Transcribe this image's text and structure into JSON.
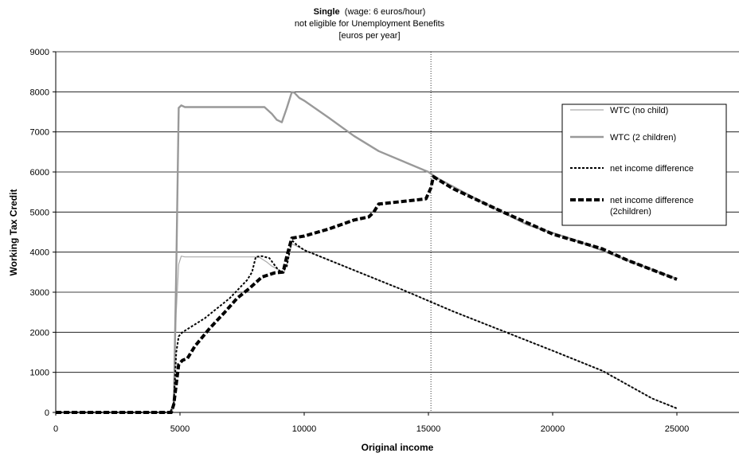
{
  "chart_data": {
    "type": "line",
    "title_bold": "Single",
    "title_rest": "  (wage: 6 euros/hour)",
    "subtitle_1": "not eligible for Unemployment Benefits",
    "subtitle_2": "[euros per year]",
    "xlabel": "Original income",
    "ylabel": "Working Tax Credit",
    "xlim": [
      0,
      27500
    ],
    "ylim": [
      0,
      9000
    ],
    "x_ticks": [
      0,
      5000,
      10000,
      15000,
      20000,
      25000
    ],
    "x_tick_labels": [
      "0",
      "5000",
      "10000",
      "15000",
      "20000",
      "25000"
    ],
    "y_ticks": [
      0,
      1000,
      2000,
      3000,
      4000,
      5000,
      6000,
      7000,
      8000,
      9000
    ],
    "y_tick_labels": [
      "0",
      "1000",
      "2000",
      "3000",
      "4000",
      "5000",
      "6000",
      "7000",
      "8000",
      "9000"
    ],
    "grid": "horizontal",
    "legend_position": "right",
    "reference_line_x": 15100,
    "series": [
      {
        "name": "WTC (no child)",
        "color": "#aaaaaa",
        "style": "solid-thin",
        "points": [
          [
            0,
            0
          ],
          [
            4600,
            0
          ],
          [
            4750,
            200
          ],
          [
            4850,
            2500
          ],
          [
            4950,
            3700
          ],
          [
            5050,
            3900
          ],
          [
            5200,
            3880
          ],
          [
            8000,
            3880
          ],
          [
            8200,
            3870
          ],
          [
            8500,
            3750
          ],
          [
            8700,
            3650
          ],
          [
            9000,
            3550
          ],
          [
            9200,
            3500
          ],
          [
            9350,
            3800
          ],
          [
            9500,
            4200
          ],
          [
            9700,
            4150
          ],
          [
            10000,
            4050
          ],
          [
            12000,
            3550
          ],
          [
            14000,
            3050
          ],
          [
            16000,
            2520
          ],
          [
            18000,
            2030
          ],
          [
            20000,
            1540
          ],
          [
            22000,
            1040
          ],
          [
            24000,
            350
          ],
          [
            25000,
            100
          ]
        ]
      },
      {
        "name": "WTC (2 children)",
        "color": "#999999",
        "style": "solid-thick",
        "points": [
          [
            0,
            0
          ],
          [
            4650,
            0
          ],
          [
            4750,
            200
          ],
          [
            4850,
            3500
          ],
          [
            4950,
            7600
          ],
          [
            5050,
            7660
          ],
          [
            5200,
            7620
          ],
          [
            8400,
            7620
          ],
          [
            8700,
            7450
          ],
          [
            8900,
            7300
          ],
          [
            9100,
            7240
          ],
          [
            9300,
            7600
          ],
          [
            9500,
            7990
          ],
          [
            9600,
            7980
          ],
          [
            9800,
            7850
          ],
          [
            10000,
            7780
          ],
          [
            11000,
            7350
          ],
          [
            12000,
            6900
          ],
          [
            13000,
            6520
          ],
          [
            15000,
            6000
          ],
          [
            15400,
            5830
          ],
          [
            17000,
            5300
          ],
          [
            19000,
            4680
          ],
          [
            21000,
            4280
          ],
          [
            23000,
            3800
          ],
          [
            25000,
            3330
          ]
        ]
      },
      {
        "name": "net income difference",
        "color": "#000000",
        "style": "dotted",
        "points": [
          [
            0,
            0
          ],
          [
            4600,
            0
          ],
          [
            4750,
            200
          ],
          [
            4850,
            1500
          ],
          [
            4950,
            1900
          ],
          [
            5100,
            2000
          ],
          [
            6000,
            2350
          ],
          [
            7000,
            2850
          ],
          [
            7700,
            3300
          ],
          [
            7900,
            3500
          ],
          [
            8050,
            3880
          ],
          [
            8300,
            3900
          ],
          [
            8600,
            3850
          ],
          [
            8900,
            3600
          ],
          [
            9100,
            3480
          ],
          [
            9300,
            3650
          ],
          [
            9500,
            4300
          ],
          [
            9700,
            4180
          ],
          [
            10000,
            4050
          ],
          [
            12000,
            3550
          ],
          [
            14000,
            3050
          ],
          [
            16000,
            2520
          ],
          [
            18000,
            2030
          ],
          [
            20000,
            1540
          ],
          [
            22000,
            1040
          ],
          [
            24000,
            350
          ],
          [
            25000,
            100
          ]
        ]
      },
      {
        "name": "net income difference",
        "name_line2": "(2children)",
        "color": "#000000",
        "style": "dashed-thick",
        "points": [
          [
            0,
            0
          ],
          [
            4650,
            0
          ],
          [
            4750,
            200
          ],
          [
            4850,
            700
          ],
          [
            4950,
            1200
          ],
          [
            5100,
            1300
          ],
          [
            5300,
            1350
          ],
          [
            5600,
            1650
          ],
          [
            6200,
            2100
          ],
          [
            6800,
            2500
          ],
          [
            7300,
            2850
          ],
          [
            7800,
            3100
          ],
          [
            8300,
            3380
          ],
          [
            8800,
            3480
          ],
          [
            9150,
            3500
          ],
          [
            9300,
            3900
          ],
          [
            9500,
            4350
          ],
          [
            10000,
            4400
          ],
          [
            11000,
            4580
          ],
          [
            12000,
            4800
          ],
          [
            12600,
            4880
          ],
          [
            12800,
            5000
          ],
          [
            13000,
            5200
          ],
          [
            14500,
            5300
          ],
          [
            14900,
            5330
          ],
          [
            15100,
            5600
          ],
          [
            15200,
            5880
          ],
          [
            16000,
            5580
          ],
          [
            18000,
            5000
          ],
          [
            20000,
            4450
          ],
          [
            22000,
            4080
          ],
          [
            23000,
            3800
          ],
          [
            25000,
            3320
          ]
        ]
      }
    ]
  }
}
